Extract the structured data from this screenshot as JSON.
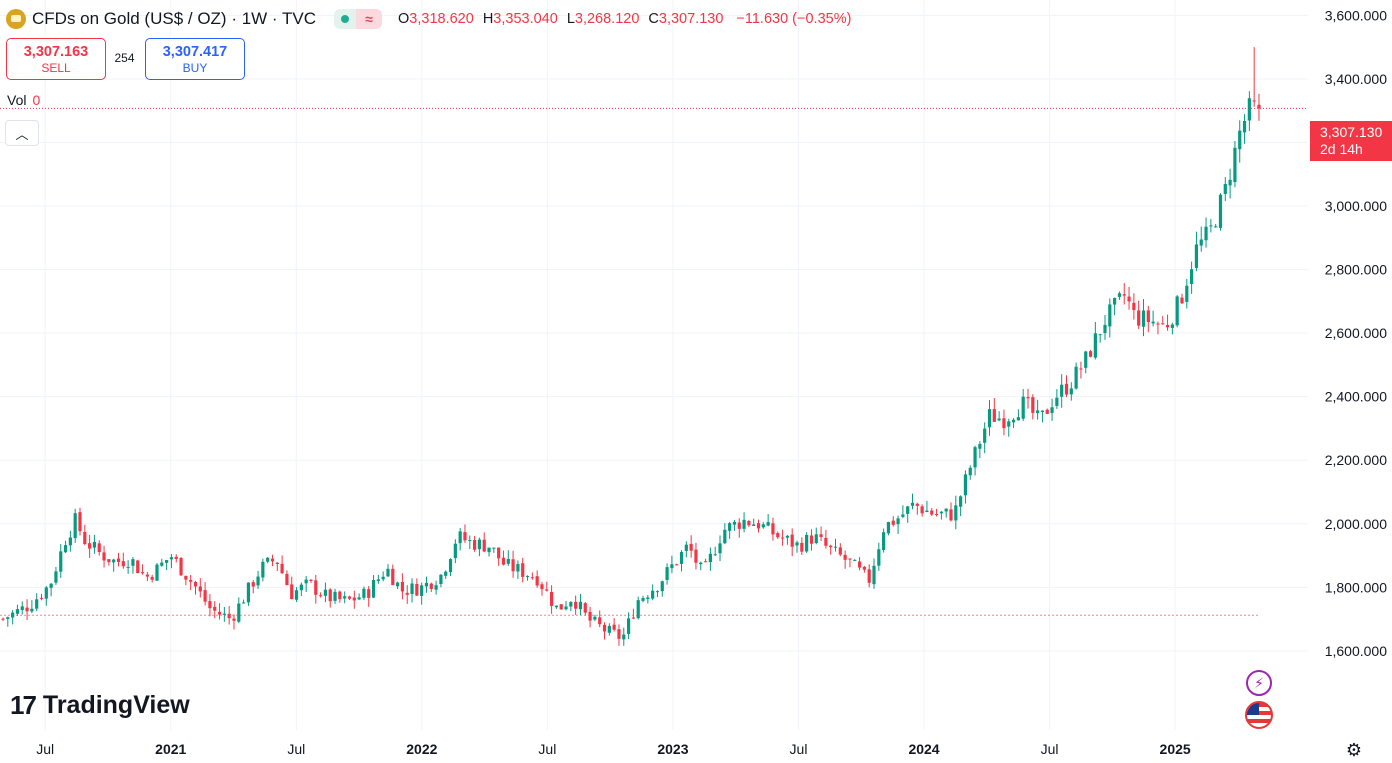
{
  "header": {
    "symbol": "CFDs on Gold (US$ / OZ) · 1W · TVC",
    "ohlc": [
      {
        "k": "O",
        "v": "3,318.620"
      },
      {
        "k": "H",
        "v": "3,353.040"
      },
      {
        "k": "L",
        "v": "3,268.120"
      },
      {
        "k": "C",
        "v": "3,307.130"
      },
      {
        "k": "",
        "v": "−11.630 (−0.35%)"
      }
    ]
  },
  "trade": {
    "sell_price": "3,307.163",
    "sell_label": "SELL",
    "buy_price": "3,307.417",
    "buy_label": "BUY",
    "spread": "254"
  },
  "volume": {
    "label": "Vol",
    "value": "0"
  },
  "last_price": {
    "value": "3,307.130",
    "countdown": "2d 14h"
  },
  "logo": {
    "text": "TradingView",
    "mark": "17"
  },
  "colors": {
    "up": "#089981",
    "down": "#f23645",
    "grid": "#f0f3fa",
    "axis_text": "#131722"
  },
  "chart_data": {
    "type": "candlestick",
    "interval": "1W",
    "ylim": [
      1480,
      3620
    ],
    "y_ticks": [
      1600,
      1800,
      2000,
      2200,
      2400,
      2600,
      2800,
      3000,
      3200,
      3400,
      3600
    ],
    "x_ticks": [
      {
        "label": "Jul",
        "t": 2020.5
      },
      {
        "label": "2021",
        "t": 2021.0
      },
      {
        "label": "Jul",
        "t": 2021.5
      },
      {
        "label": "2022",
        "t": 2022.0
      },
      {
        "label": "Jul",
        "t": 2022.5
      },
      {
        "label": "2023",
        "t": 2023.0
      },
      {
        "label": "Jul",
        "t": 2023.5
      },
      {
        "label": "2024",
        "t": 2024.0
      },
      {
        "label": "Jul",
        "t": 2024.5
      },
      {
        "label": "2025",
        "t": 2025.0
      }
    ],
    "last_close": 3307.13,
    "reference_line": 1712,
    "anchors": [
      [
        2020.33,
        1700
      ],
      [
        2020.38,
        1720
      ],
      [
        2020.44,
        1745
      ],
      [
        2020.52,
        1810
      ],
      [
        2020.58,
        1950
      ],
      [
        2020.62,
        2010
      ],
      [
        2020.66,
        1945
      ],
      [
        2020.72,
        1905
      ],
      [
        2020.78,
        1880
      ],
      [
        2020.84,
        1890
      ],
      [
        2020.9,
        1830
      ],
      [
        2020.95,
        1860
      ],
      [
        2021.0,
        1900
      ],
      [
        2021.05,
        1850
      ],
      [
        2021.1,
        1800
      ],
      [
        2021.16,
        1730
      ],
      [
        2021.24,
        1700
      ],
      [
        2021.3,
        1780
      ],
      [
        2021.36,
        1860
      ],
      [
        2021.42,
        1890
      ],
      [
        2021.48,
        1780
      ],
      [
        2021.55,
        1810
      ],
      [
        2021.62,
        1770
      ],
      [
        2021.7,
        1755
      ],
      [
        2021.78,
        1780
      ],
      [
        2021.86,
        1860
      ],
      [
        2021.92,
        1790
      ],
      [
        2022.0,
        1800
      ],
      [
        2022.08,
        1840
      ],
      [
        2022.14,
        1960
      ],
      [
        2022.2,
        1940
      ],
      [
        2022.27,
        1930
      ],
      [
        2022.33,
        1870
      ],
      [
        2022.4,
        1850
      ],
      [
        2022.46,
        1830
      ],
      [
        2022.54,
        1730
      ],
      [
        2022.6,
        1770
      ],
      [
        2022.66,
        1700
      ],
      [
        2022.74,
        1660
      ],
      [
        2022.8,
        1640
      ],
      [
        2022.86,
        1760
      ],
      [
        2022.94,
        1810
      ],
      [
        2023.0,
        1870
      ],
      [
        2023.06,
        1930
      ],
      [
        2023.12,
        1840
      ],
      [
        2023.2,
        1980
      ],
      [
        2023.28,
        2010
      ],
      [
        2023.34,
        2000
      ],
      [
        2023.42,
        1960
      ],
      [
        2023.5,
        1930
      ],
      [
        2023.56,
        1960
      ],
      [
        2023.62,
        1920
      ],
      [
        2023.7,
        1880
      ],
      [
        2023.78,
        1820
      ],
      [
        2023.84,
        1990
      ],
      [
        2023.9,
        2020
      ],
      [
        2023.96,
        2060
      ],
      [
        2024.04,
        2030
      ],
      [
        2024.12,
        2030
      ],
      [
        2024.18,
        2170
      ],
      [
        2024.26,
        2340
      ],
      [
        2024.32,
        2330
      ],
      [
        2024.4,
        2380
      ],
      [
        2024.46,
        2320
      ],
      [
        2024.52,
        2400
      ],
      [
        2024.58,
        2440
      ],
      [
        2024.64,
        2510
      ],
      [
        2024.72,
        2640
      ],
      [
        2024.8,
        2720
      ],
      [
        2024.84,
        2650
      ],
      [
        2024.9,
        2640
      ],
      [
        2024.96,
        2620
      ],
      [
        2025.02,
        2700
      ],
      [
        2025.08,
        2860
      ],
      [
        2025.14,
        2920
      ],
      [
        2025.2,
        3050
      ],
      [
        2025.26,
        3240
      ],
      [
        2025.3,
        3310
      ],
      [
        2025.33,
        3307.13
      ]
    ]
  }
}
